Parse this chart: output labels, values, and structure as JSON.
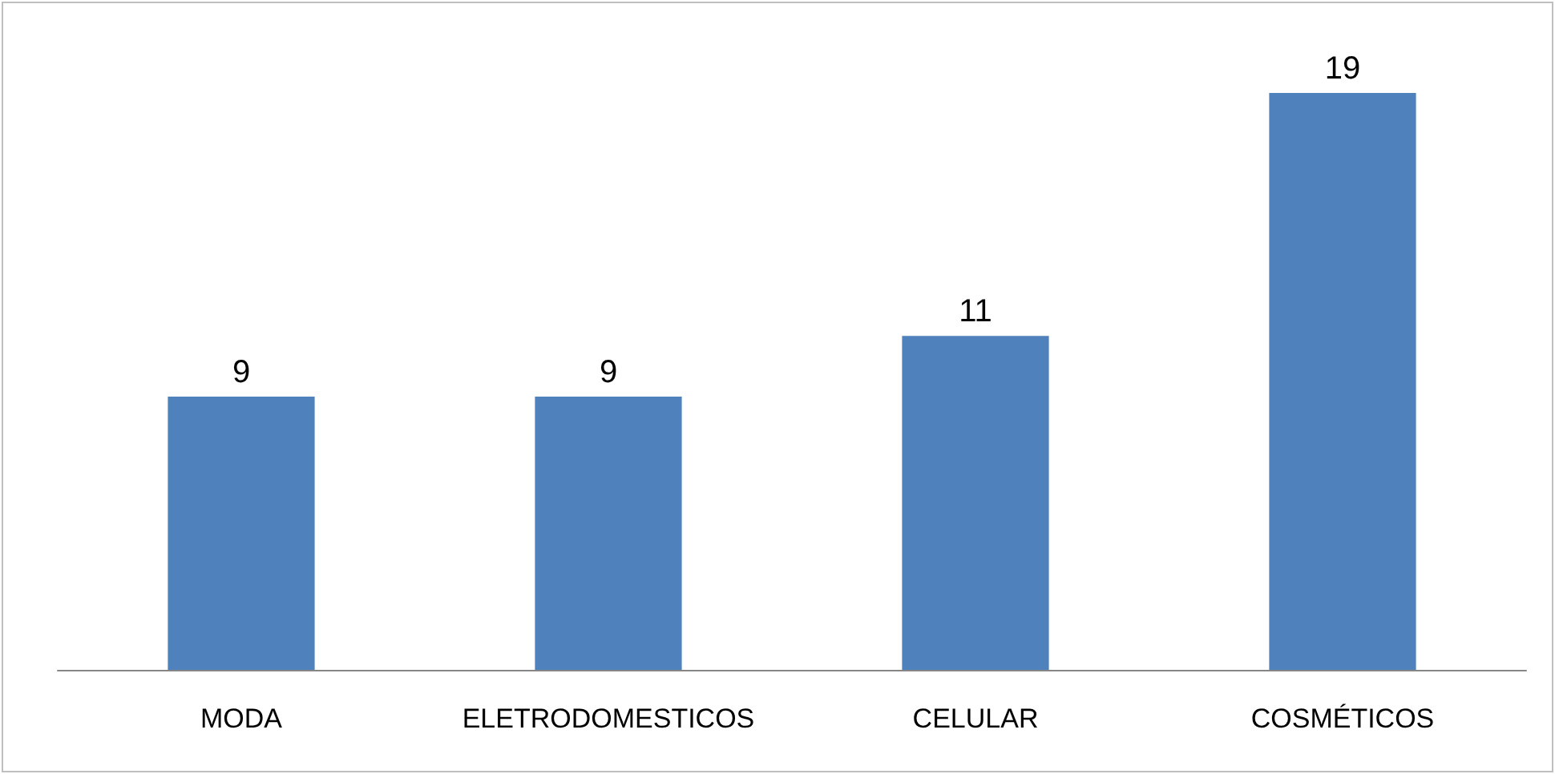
{
  "chart_data": {
    "type": "bar",
    "categories": [
      "MODA",
      "ELETRODOMESTICOS",
      "CELULAR",
      "COSMÉTICOS"
    ],
    "values": [
      9,
      9,
      11,
      19
    ],
    "color": "#4f81bd",
    "data_labels": true
  }
}
